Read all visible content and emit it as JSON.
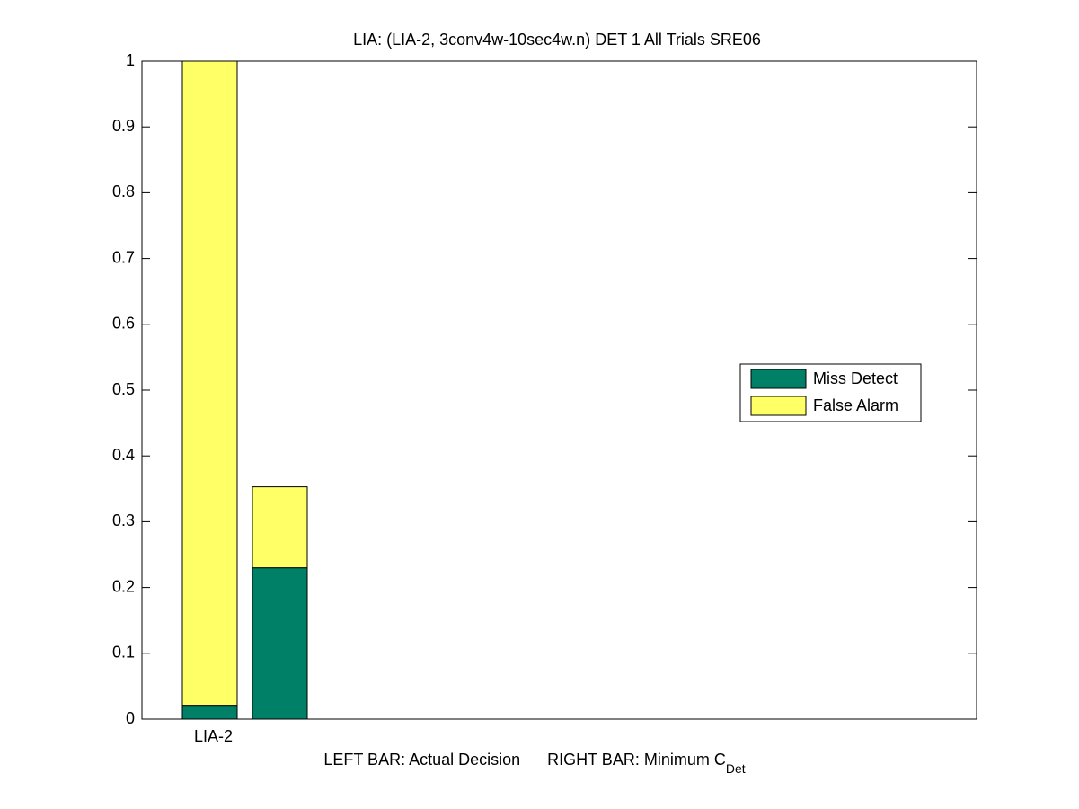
{
  "chart_data": {
    "type": "stacked_bar",
    "title": "LIA: (LIA-2, 3conv4w-10sec4w.n) DET 1 All Trials SRE06",
    "xlabel": {
      "left": "LEFT BAR: Actual Decision",
      "right": "RIGHT BAR: Minimum C",
      "subscript": "Det"
    },
    "categories": [
      "LIA-2",
      null
    ],
    "series": [
      {
        "name": "Miss Detect",
        "color": "#008066",
        "values": [
          0.021,
          0.23
        ]
      },
      {
        "name": "False Alarm",
        "color": "#ffff66",
        "values": [
          0.979,
          0.123
        ]
      }
    ],
    "ylim": [
      0,
      1
    ],
    "yticks": [
      0,
      0.1,
      0.2,
      0.3,
      0.4,
      0.5,
      0.6,
      0.7,
      0.8,
      0.9,
      1
    ],
    "grid": false,
    "legend": "right"
  }
}
